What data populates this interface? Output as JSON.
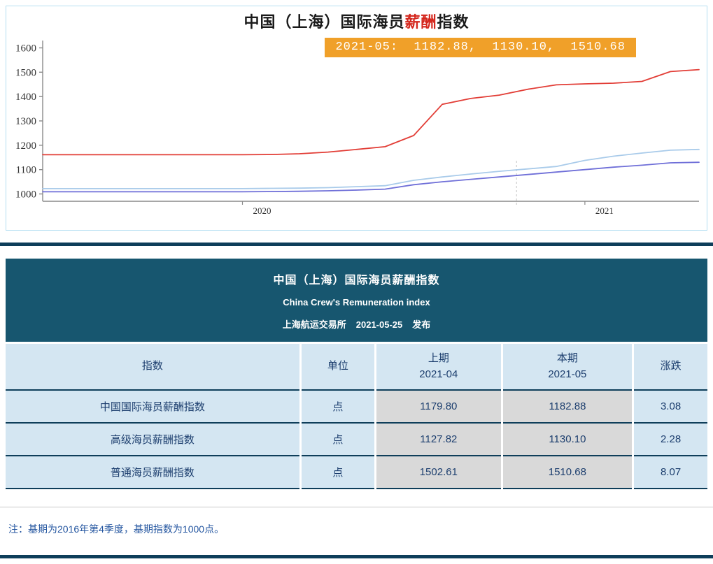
{
  "colors": {
    "panel_border": "#b5dff2",
    "annotation_bg": "#f0a029",
    "bar": "#0e3e5a",
    "header_bg": "#17566f",
    "cell_blue": "#d4e6f2",
    "cell_gray": "#d9d9d9",
    "table_text": "#1c3e6e",
    "note_text": "#2456a0"
  },
  "chart": {
    "title_parts": [
      {
        "text": "中国（上海）国际海员",
        "color": "#1a1a1a"
      },
      {
        "text": "薪酬",
        "color": "#d4271d"
      },
      {
        "text": "指数",
        "color": "#1a1a1a"
      }
    ],
    "annotation_text": "2021-05:  1182.88,  1130.10,  1510.68"
  },
  "chart_data": {
    "type": "line",
    "title": "中国（上海）国际海员薪酬指数",
    "xlabel": "",
    "ylabel": "",
    "grid": false,
    "legend": "none",
    "ylim": [
      970,
      1630
    ],
    "yticks": [
      1000,
      1100,
      1200,
      1300,
      1400,
      1500,
      1600
    ],
    "x": [
      "2019-06",
      "2019-07",
      "2019-08",
      "2019-09",
      "2019-10",
      "2019-11",
      "2019-12",
      "2020-01",
      "2020-02",
      "2020-03",
      "2020-04",
      "2020-05",
      "2020-06",
      "2020-07",
      "2020-08",
      "2020-09",
      "2020-10",
      "2020-11",
      "2020-12",
      "2021-01",
      "2021-02",
      "2021-03",
      "2021-04",
      "2021-05"
    ],
    "x_year_ticks": [
      {
        "label": "2020",
        "index": 7
      },
      {
        "label": "2021",
        "index": 19
      }
    ],
    "series": [
      {
        "name": "普通海员薪酬指数",
        "color": "#e23d36",
        "values": [
          1161,
          1161,
          1161,
          1161,
          1161,
          1161,
          1161,
          1161,
          1162,
          1165,
          1172,
          1183,
          1194,
          1240,
          1368,
          1392,
          1406,
          1430,
          1448,
          1452,
          1455,
          1462,
          1502.61,
          1510.68
        ]
      },
      {
        "name": "中国国际海员薪酬指数",
        "color": "#a9cbea",
        "values": [
          1022,
          1022,
          1022,
          1022,
          1022,
          1022,
          1022,
          1022,
          1023,
          1024,
          1026,
          1030,
          1034,
          1056,
          1070,
          1082,
          1093,
          1103,
          1113,
          1138,
          1155,
          1168,
          1179.8,
          1182.88
        ]
      },
      {
        "name": "高级海员薪酬指数",
        "color": "#6f6fd8",
        "values": [
          1009,
          1009,
          1009,
          1009,
          1009,
          1009,
          1009,
          1009,
          1010,
          1011,
          1013,
          1016,
          1020,
          1038,
          1050,
          1060,
          1070,
          1080,
          1090,
          1100,
          1110,
          1118,
          1127.82,
          1130.1
        ]
      }
    ]
  },
  "report": {
    "title": "中国（上海）国际海员薪酬指数",
    "subtitle": "China Crew's Remuneration index",
    "publisher": "上海航运交易所",
    "date": "2021-05-25",
    "publish_label": "发布"
  },
  "table": {
    "columns": [
      {
        "key": "name",
        "label": "指数",
        "sub": ""
      },
      {
        "key": "unit",
        "label": "单位",
        "sub": ""
      },
      {
        "key": "prev",
        "label": "上期",
        "sub": "2021-04"
      },
      {
        "key": "curr",
        "label": "本期",
        "sub": "2021-05"
      },
      {
        "key": "change",
        "label": "涨跌",
        "sub": ""
      }
    ],
    "rows": [
      {
        "name": "中国国际海员薪酬指数",
        "unit": "点",
        "prev": "1179.80",
        "curr": "1182.88",
        "change": "3.08"
      },
      {
        "name": "高级海员薪酬指数",
        "unit": "点",
        "prev": "1127.82",
        "curr": "1130.10",
        "change": "2.28"
      },
      {
        "name": "普通海员薪酬指数",
        "unit": "点",
        "prev": "1502.61",
        "curr": "1510.68",
        "change": "8.07"
      }
    ]
  },
  "note": {
    "text": "注：基期为2016年第4季度，基期指数为1000点。"
  }
}
